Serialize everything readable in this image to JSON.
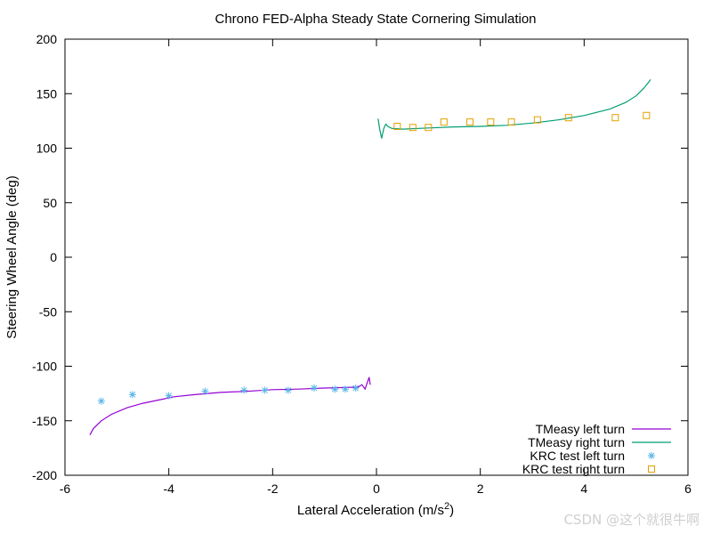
{
  "chart_data": {
    "type": "line",
    "title": "Chrono FED-Alpha Steady State Cornering Simulation",
    "xlabel": "Lateral Acceleration (m/s",
    "xlabel_sup": "2",
    "xlabel_end": ")",
    "ylabel": "Steering Wheel Angle (deg)",
    "xlim": [
      -6,
      6
    ],
    "ylim": [
      -200,
      200
    ],
    "xticks": [
      -6,
      -4,
      -2,
      0,
      2,
      4,
      6
    ],
    "yticks": [
      -200,
      -150,
      -100,
      -50,
      0,
      50,
      100,
      150,
      200
    ],
    "grid": false,
    "legend_position": "bottom-right",
    "series": [
      {
        "name": "TMeasy left turn",
        "kind": "line",
        "color": "#9400d3",
        "x": [
          -5.52,
          -5.45,
          -5.3,
          -5.1,
          -4.8,
          -4.5,
          -4.2,
          -3.9,
          -3.5,
          -3.0,
          -2.5,
          -2.0,
          -1.5,
          -1.0,
          -0.6,
          -0.35,
          -0.28,
          -0.22,
          -0.17,
          -0.14,
          -0.12
        ],
        "y": [
          -163,
          -157,
          -150,
          -144,
          -138,
          -134,
          -131,
          -128,
          -126,
          -124,
          -123,
          -121.5,
          -121,
          -120,
          -119.5,
          -119,
          -117,
          -121,
          -114,
          -110,
          -117
        ]
      },
      {
        "name": "TMeasy right turn",
        "kind": "line",
        "color": "#009e73",
        "x": [
          0.03,
          0.06,
          0.1,
          0.14,
          0.18,
          0.22,
          0.3,
          0.5,
          1.0,
          1.5,
          2.0,
          2.5,
          3.0,
          3.5,
          4.0,
          4.5,
          4.8,
          5.0,
          5.15,
          5.25,
          5.28
        ],
        "y": [
          127,
          118,
          109,
          118,
          122,
          120,
          118,
          117.5,
          118.5,
          119.5,
          120,
          121,
          123,
          126,
          130,
          136,
          142,
          148,
          155,
          161,
          163
        ]
      },
      {
        "name": "KRC test left turn",
        "kind": "scatter",
        "marker": "star",
        "color": "#56b4e9",
        "x": [
          -5.3,
          -4.7,
          -4.0,
          -3.3,
          -2.55,
          -2.15,
          -1.7,
          -1.2,
          -0.8,
          -0.6,
          -0.4
        ],
        "y": [
          -132,
          -126,
          -127,
          -123,
          -122,
          -122,
          -122,
          -120,
          -121,
          -121,
          -120
        ]
      },
      {
        "name": "KRC test right turn",
        "kind": "scatter",
        "marker": "square",
        "color": "#e69f00",
        "x": [
          0.4,
          0.7,
          1.0,
          1.3,
          1.8,
          2.2,
          2.6,
          3.1,
          3.7,
          4.6,
          5.2
        ],
        "y": [
          120,
          119,
          119,
          124,
          124,
          124,
          124,
          126,
          128,
          128,
          130
        ]
      }
    ]
  },
  "watermark": "CSDN @这个就很牛啊"
}
